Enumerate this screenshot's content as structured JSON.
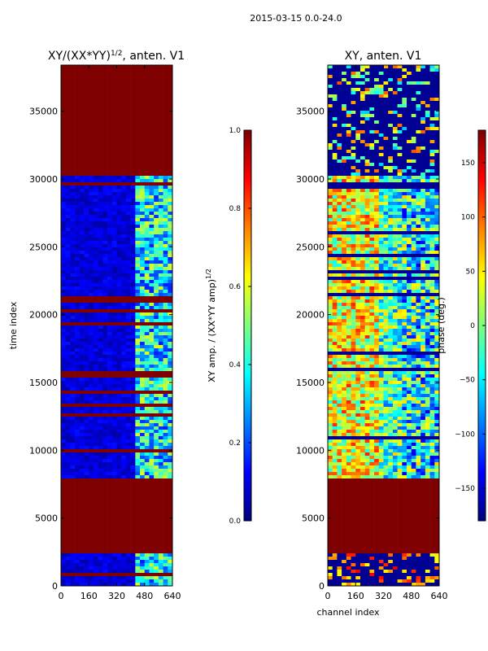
{
  "suptitle": "2015-03-15 0.0-24.0",
  "colors": {
    "jet": [
      "#00007f",
      "#0000ff",
      "#007fff",
      "#00ffff",
      "#7fff7f",
      "#ffff00",
      "#ff7f00",
      "#ff0000",
      "#7f0000"
    ]
  },
  "chart_data": [
    {
      "type": "heatmap",
      "title": "XY/(XX*YY)",
      "title_sup": "1/2",
      "title_suffix": ", anten. V1",
      "xlabel": "",
      "ylabel": "time index",
      "xlim": [
        0,
        640
      ],
      "ylim": [
        0,
        38400
      ],
      "xticks": [
        0,
        160,
        320,
        480,
        640
      ],
      "yticks": [
        0,
        5000,
        10000,
        15000,
        20000,
        25000,
        30000,
        35000
      ],
      "fully_flagged_time_ranges": [
        [
          2300,
          7800
        ],
        [
          30200,
          38400
        ]
      ],
      "colorbar": {
        "label": "XY amp. / (XX*YY amp)",
        "label_sup": "1/2",
        "range": [
          0.0,
          1.0
        ],
        "ticks": [
          "0.0",
          "0.2",
          "0.4",
          "0.6",
          "0.8",
          "1.0"
        ]
      }
    },
    {
      "type": "heatmap",
      "title": "XY, anten. V1",
      "title_sup": "",
      "title_suffix": "",
      "xlabel": "channel index",
      "ylabel": "",
      "xlim": [
        0,
        640
      ],
      "ylim": [
        0,
        38400
      ],
      "xticks": [
        0,
        160,
        320,
        480,
        640
      ],
      "yticks": [
        0,
        5000,
        10000,
        15000,
        20000,
        25000,
        30000,
        35000
      ],
      "fully_flagged_time_ranges": [
        [
          2300,
          7800
        ]
      ],
      "colorbar": {
        "label": "phase (deg.)",
        "label_sup": "",
        "range": [
          -180,
          180
        ],
        "ticks": [
          "−150",
          "−100",
          "−50",
          "0",
          "50",
          "100",
          "150"
        ]
      }
    }
  ]
}
